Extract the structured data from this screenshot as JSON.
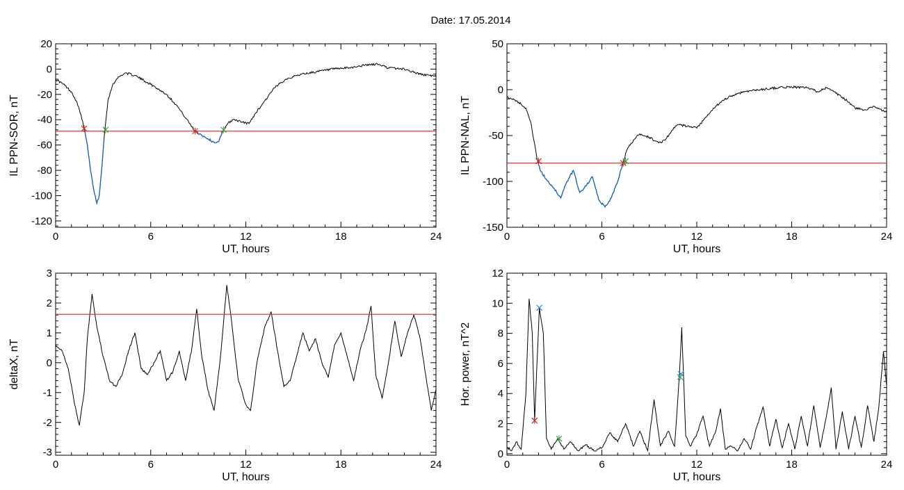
{
  "title": "Date:  17.05.2014",
  "colors": {
    "axis": "#000000",
    "trace": "#000000",
    "below_threshold": "#1565c0",
    "threshold_line": "#e53935",
    "start_marker": "#c62828",
    "end_marker": "#43a047",
    "peak_marker": "#1e88e5"
  },
  "chart_data": [
    {
      "type": "line",
      "id": "sor",
      "xlabel": "UT, hours",
      "ylabel": "IL PPN-SOR, nT",
      "xlim": [
        0,
        24
      ],
      "ylim": [
        -125,
        20
      ],
      "xticks": [
        0,
        6,
        12,
        18,
        24
      ],
      "yticks": [
        20,
        0,
        -20,
        -40,
        -60,
        -80,
        -100,
        -120
      ],
      "threshold": -49,
      "series": [
        {
          "values": [
            [
              0,
              -8
            ],
            [
              0.5,
              -12
            ],
            [
              1.0,
              -18
            ],
            [
              1.3,
              -25
            ],
            [
              1.6,
              -36
            ],
            [
              1.8,
              -47
            ],
            [
              2.0,
              -60
            ],
            [
              2.2,
              -80
            ],
            [
              2.4,
              -95
            ],
            [
              2.6,
              -106
            ],
            [
              2.75,
              -100
            ],
            [
              2.9,
              -80
            ],
            [
              3.1,
              -48
            ],
            [
              3.3,
              -25
            ],
            [
              3.6,
              -12
            ],
            [
              4.0,
              -6
            ],
            [
              4.4,
              -3
            ],
            [
              5.0,
              -5
            ],
            [
              6.0,
              -12
            ],
            [
              7.0,
              -20
            ],
            [
              7.6,
              -28
            ],
            [
              8.0,
              -35
            ],
            [
              8.4,
              -42
            ],
            [
              8.8,
              -49
            ],
            [
              9.2,
              -52
            ],
            [
              9.6,
              -55
            ],
            [
              10.0,
              -58
            ],
            [
              10.3,
              -57
            ],
            [
              10.6,
              -48
            ],
            [
              10.9,
              -42
            ],
            [
              11.3,
              -40
            ],
            [
              11.8,
              -42
            ],
            [
              12.2,
              -43
            ],
            [
              12.6,
              -35
            ],
            [
              13.2,
              -25
            ],
            [
              13.8,
              -15
            ],
            [
              14.5,
              -8
            ],
            [
              15.5,
              -4
            ],
            [
              16.5,
              -2
            ],
            [
              17.5,
              0
            ],
            [
              18.5,
              1
            ],
            [
              19.5,
              3
            ],
            [
              20.3,
              4
            ],
            [
              21.0,
              1
            ],
            [
              22.0,
              0
            ],
            [
              23.0,
              -4
            ],
            [
              23.6,
              -5
            ],
            [
              24,
              -6
            ]
          ]
        }
      ],
      "crossings": [
        {
          "x": 1.8,
          "y": -47,
          "kind": "start"
        },
        {
          "x": 3.15,
          "y": -48,
          "kind": "end"
        },
        {
          "x": 8.8,
          "y": -49,
          "kind": "start"
        },
        {
          "x": 10.6,
          "y": -48,
          "kind": "end"
        }
      ]
    },
    {
      "type": "line",
      "id": "nal",
      "xlabel": "UT, hours",
      "ylabel": "IL PPN-NAL, nT",
      "xlim": [
        0,
        24
      ],
      "ylim": [
        -150,
        50
      ],
      "xticks": [
        0,
        6,
        12,
        18,
        24
      ],
      "yticks": [
        50,
        0,
        -50,
        -100,
        -150
      ],
      "threshold": -80,
      "series": [
        {
          "values": [
            [
              0,
              -8
            ],
            [
              0.6,
              -12
            ],
            [
              1.2,
              -20
            ],
            [
              1.5,
              -35
            ],
            [
              1.7,
              -55
            ],
            [
              1.9,
              -75
            ],
            [
              2.1,
              -88
            ],
            [
              2.5,
              -98
            ],
            [
              3.0,
              -108
            ],
            [
              3.4,
              -118
            ],
            [
              3.8,
              -100
            ],
            [
              4.2,
              -88
            ],
            [
              4.6,
              -112
            ],
            [
              5.0,
              -105
            ],
            [
              5.4,
              -95
            ],
            [
              5.8,
              -120
            ],
            [
              6.2,
              -128
            ],
            [
              6.6,
              -118
            ],
            [
              7.0,
              -100
            ],
            [
              7.3,
              -82
            ],
            [
              7.6,
              -65
            ],
            [
              8.0,
              -55
            ],
            [
              8.4,
              -48
            ],
            [
              9.0,
              -52
            ],
            [
              9.6,
              -58
            ],
            [
              10.0,
              -55
            ],
            [
              10.4,
              -45
            ],
            [
              10.8,
              -38
            ],
            [
              11.4,
              -40
            ],
            [
              12.0,
              -42
            ],
            [
              12.6,
              -30
            ],
            [
              13.2,
              -18
            ],
            [
              14.0,
              -8
            ],
            [
              15.0,
              -2
            ],
            [
              16.0,
              0
            ],
            [
              17.0,
              2
            ],
            [
              18.0,
              3
            ],
            [
              19.0,
              2
            ],
            [
              19.6,
              -2
            ],
            [
              20.2,
              2
            ],
            [
              20.8,
              -4
            ],
            [
              21.5,
              -12
            ],
            [
              22.0,
              -20
            ],
            [
              22.6,
              -22
            ],
            [
              23.2,
              -18
            ],
            [
              24,
              -25
            ]
          ]
        }
      ],
      "crossings": [
        {
          "x": 2.0,
          "y": -78,
          "kind": "start"
        },
        {
          "x": 7.35,
          "y": -80,
          "kind": "start"
        },
        {
          "x": 7.5,
          "y": -78,
          "kind": "end"
        }
      ]
    },
    {
      "type": "line",
      "id": "deltax",
      "xlabel": "UT, hours",
      "ylabel": "deltaX, nT",
      "xlim": [
        0,
        24
      ],
      "ylim": [
        -3.1,
        3.0
      ],
      "xticks": [
        0,
        6,
        12,
        18,
        24
      ],
      "yticks": [
        3,
        2,
        1,
        0,
        -1,
        -2,
        -3
      ],
      "threshold": 1.62,
      "series": [
        {
          "values": [
            [
              0,
              0.6
            ],
            [
              0.4,
              0.4
            ],
            [
              0.8,
              -0.2
            ],
            [
              1.2,
              -1.4
            ],
            [
              1.5,
              -2.1
            ],
            [
              1.8,
              -1.0
            ],
            [
              2.0,
              0.8
            ],
            [
              2.3,
              2.3
            ],
            [
              2.6,
              1.2
            ],
            [
              3.0,
              0.2
            ],
            [
              3.4,
              -0.6
            ],
            [
              3.8,
              -0.8
            ],
            [
              4.2,
              -0.4
            ],
            [
              4.6,
              0.4
            ],
            [
              5.0,
              1.0
            ],
            [
              5.4,
              -0.2
            ],
            [
              5.8,
              -0.4
            ],
            [
              6.2,
              0.0
            ],
            [
              6.6,
              0.4
            ],
            [
              7.0,
              -0.6
            ],
            [
              7.4,
              -0.3
            ],
            [
              7.8,
              0.4
            ],
            [
              8.2,
              -0.6
            ],
            [
              8.6,
              0.5
            ],
            [
              8.9,
              1.8
            ],
            [
              9.2,
              0.3
            ],
            [
              9.6,
              -0.9
            ],
            [
              10.0,
              -1.6
            ],
            [
              10.4,
              0.2
            ],
            [
              10.8,
              2.6
            ],
            [
              11.1,
              1.4
            ],
            [
              11.5,
              -0.5
            ],
            [
              12.0,
              -1.4
            ],
            [
              12.3,
              -1.6
            ],
            [
              12.7,
              0.0
            ],
            [
              13.2,
              1.2
            ],
            [
              13.6,
              1.7
            ],
            [
              14.0,
              0.4
            ],
            [
              14.4,
              -0.8
            ],
            [
              14.8,
              -0.6
            ],
            [
              15.2,
              0.2
            ],
            [
              15.6,
              1.0
            ],
            [
              16.0,
              0.4
            ],
            [
              16.4,
              0.8
            ],
            [
              16.8,
              0.0
            ],
            [
              17.2,
              -0.5
            ],
            [
              17.6,
              0.6
            ],
            [
              18.0,
              1.0
            ],
            [
              18.4,
              0.2
            ],
            [
              18.8,
              -0.6
            ],
            [
              19.2,
              0.4
            ],
            [
              19.6,
              1.1
            ],
            [
              19.9,
              1.9
            ],
            [
              20.2,
              -0.4
            ],
            [
              20.6,
              -1.2
            ],
            [
              21.0,
              0.0
            ],
            [
              21.4,
              1.4
            ],
            [
              21.8,
              0.2
            ],
            [
              22.2,
              1.0
            ],
            [
              22.6,
              1.6
            ],
            [
              23.0,
              0.8
            ],
            [
              23.4,
              -0.6
            ],
            [
              23.7,
              -1.6
            ],
            [
              24,
              -0.9
            ]
          ]
        }
      ],
      "crossings": []
    },
    {
      "type": "line",
      "id": "power",
      "xlabel": "UT, hours",
      "ylabel": "Hor. power, nT^2",
      "xlim": [
        0,
        24
      ],
      "ylim": [
        -0.1,
        12
      ],
      "xticks": [
        0,
        6,
        12,
        18,
        24
      ],
      "yticks": [
        12,
        10,
        8,
        6,
        4,
        2,
        0
      ],
      "threshold": null,
      "series": [
        {
          "values": [
            [
              0,
              0.4
            ],
            [
              0.3,
              0.2
            ],
            [
              0.6,
              0.8
            ],
            [
              0.9,
              0.3
            ],
            [
              1.2,
              4.0
            ],
            [
              1.4,
              10.3
            ],
            [
              1.6,
              8.0
            ],
            [
              1.75,
              2.2
            ],
            [
              1.9,
              6.0
            ],
            [
              2.05,
              9.7
            ],
            [
              2.3,
              8.0
            ],
            [
              2.5,
              1.0
            ],
            [
              2.8,
              0.3
            ],
            [
              3.2,
              1.0
            ],
            [
              3.6,
              0.3
            ],
            [
              4.0,
              0.8
            ],
            [
              4.5,
              0.2
            ],
            [
              5.0,
              0.6
            ],
            [
              5.5,
              0.2
            ],
            [
              6.0,
              0.4
            ],
            [
              6.5,
              1.4
            ],
            [
              7.0,
              0.8
            ],
            [
              7.5,
              2.0
            ],
            [
              8.0,
              0.5
            ],
            [
              8.4,
              1.5
            ],
            [
              8.9,
              0.2
            ],
            [
              9.3,
              3.6
            ],
            [
              9.7,
              0.5
            ],
            [
              10.2,
              1.5
            ],
            [
              10.6,
              0.5
            ],
            [
              10.9,
              5.2
            ],
            [
              11.05,
              8.4
            ],
            [
              11.3,
              1.2
            ],
            [
              11.6,
              0.5
            ],
            [
              12.0,
              1.3
            ],
            [
              12.4,
              2.5
            ],
            [
              12.8,
              0.5
            ],
            [
              13.2,
              1.5
            ],
            [
              13.5,
              3.0
            ],
            [
              13.8,
              0.3
            ],
            [
              14.2,
              0.5
            ],
            [
              14.6,
              0.2
            ],
            [
              15.0,
              1.0
            ],
            [
              15.4,
              0.3
            ],
            [
              15.8,
              1.8
            ],
            [
              16.2,
              3.1
            ],
            [
              16.6,
              0.5
            ],
            [
              17.0,
              2.3
            ],
            [
              17.4,
              0.4
            ],
            [
              17.8,
              2.0
            ],
            [
              18.2,
              0.3
            ],
            [
              18.6,
              2.5
            ],
            [
              19.0,
              0.5
            ],
            [
              19.4,
              3.2
            ],
            [
              19.8,
              0.4
            ],
            [
              20.2,
              2.5
            ],
            [
              20.5,
              4.4
            ],
            [
              20.8,
              0.3
            ],
            [
              21.2,
              2.8
            ],
            [
              21.6,
              0.3
            ],
            [
              22.0,
              2.5
            ],
            [
              22.4,
              0.4
            ],
            [
              22.8,
              3.2
            ],
            [
              23.2,
              0.8
            ],
            [
              23.5,
              3.0
            ],
            [
              23.8,
              6.8
            ],
            [
              24,
              4.5
            ]
          ]
        }
      ],
      "crossings": [
        {
          "x": 1.75,
          "y": 2.2,
          "kind": "start"
        },
        {
          "x": 2.05,
          "y": 9.7,
          "kind": "peak"
        },
        {
          "x": 3.3,
          "y": 1.0,
          "kind": "end"
        },
        {
          "x": 10.95,
          "y": 5.1,
          "kind": "end"
        },
        {
          "x": 11.0,
          "y": 5.3,
          "kind": "peak"
        }
      ]
    }
  ]
}
